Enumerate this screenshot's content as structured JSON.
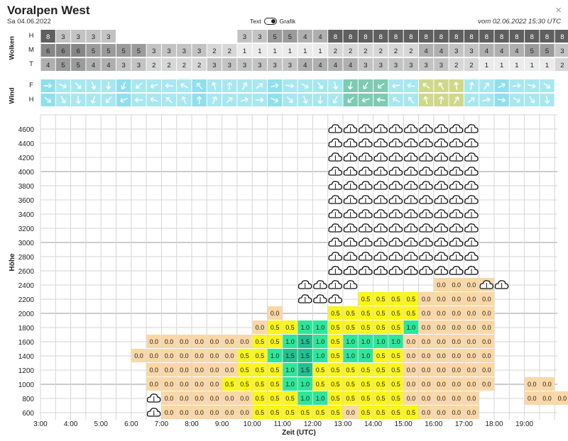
{
  "header": {
    "title": "Voralpen West",
    "date": "Sa 04.06.2022",
    "toggle_left": "Text",
    "toggle_right": "Grafik",
    "issued": "vom 02.06.2022 15:30 UTC",
    "close": "×"
  },
  "clouds_panel": {
    "label": "Wolken",
    "rows": [
      {
        "key": "H",
        "values": [
          8,
          3,
          3,
          3,
          3,
          null,
          null,
          null,
          null,
          null,
          null,
          null,
          null,
          3,
          3,
          5,
          5,
          4,
          4,
          8,
          8,
          8,
          8,
          8,
          8,
          8,
          8,
          8,
          8,
          8,
          8,
          8,
          8,
          8,
          8
        ]
      },
      {
        "key": "M",
        "values": [
          6,
          6,
          6,
          5,
          5,
          5,
          5,
          3,
          3,
          3,
          3,
          2,
          2,
          1,
          1,
          1,
          1,
          1,
          1,
          2,
          2,
          2,
          2,
          2,
          2,
          4,
          4,
          3,
          3,
          4,
          4,
          4,
          5,
          5,
          3
        ]
      },
      {
        "key": "T",
        "values": [
          4,
          5,
          5,
          4,
          4,
          3,
          3,
          2,
          2,
          2,
          2,
          3,
          3,
          3,
          3,
          3,
          3,
          4,
          4,
          4,
          4,
          3,
          3,
          3,
          3,
          3,
          3,
          2,
          2,
          1,
          1,
          1,
          1,
          1,
          2
        ]
      }
    ]
  },
  "wind_panel": {
    "label": "Wind",
    "rows": [
      {
        "key": "F"
      },
      {
        "key": "H"
      }
    ]
  },
  "colors": {
    "c0": "#fbd7a6",
    "c05": "#fbf51a",
    "c10": "#2ee69a",
    "c15": "#22c08e",
    "grid": "#d6d6d6"
  },
  "chart_data": {
    "type": "heatmap",
    "title": "Voralpen West",
    "xlabel": "Zeit (UTC)",
    "ylabel": "Höhe",
    "x_ticks": [
      "3:00",
      "4:00",
      "5:00",
      "6:00",
      "7:00",
      "8:00",
      "9:00",
      "10:00",
      "11:00",
      "12:00",
      "13:00",
      "14:00",
      "15:00",
      "16:00",
      "17:00",
      "18:00",
      "19:00"
    ],
    "y_ticks": [
      600,
      800,
      1000,
      1200,
      1400,
      1600,
      1800,
      2000,
      2200,
      2400,
      2600,
      2800,
      3000,
      3200,
      3400,
      3600,
      3800,
      4000,
      4200,
      4400,
      4600
    ],
    "x_range": [
      "3:00",
      "20:00"
    ],
    "y_range": [
      600,
      4800
    ],
    "time_step_minutes": 30,
    "altitude_step_m": 200,
    "columns": [
      "3:00",
      "3:30",
      "4:00",
      "4:30",
      "5:00",
      "5:30",
      "6:00",
      "6:30",
      "7:00",
      "7:30",
      "8:00",
      "8:30",
      "9:00",
      "9:30",
      "10:00",
      "10:30",
      "11:00",
      "11:30",
      "12:00",
      "12:30",
      "13:00",
      "13:30",
      "14:00",
      "14:30",
      "15:00",
      "15:30",
      "16:00",
      "16:30",
      "17:00",
      "17:30",
      "18:00",
      "18:30",
      "19:00",
      "19:30"
    ],
    "rows": [
      {
        "alt": 2400,
        "cells": [
          [
            7,
            null
          ],
          [
            26,
            "0.0"
          ],
          [
            27,
            "0.0"
          ],
          [
            28,
            "0.0"
          ],
          [
            29,
            "0.0"
          ]
        ]
      },
      {
        "alt": 2200,
        "cells": [
          [
            21,
            "0.5"
          ],
          [
            22,
            "0.5"
          ],
          [
            23,
            "0.5"
          ],
          [
            24,
            "0.5"
          ],
          [
            25,
            "0.0"
          ],
          [
            26,
            "0.0"
          ],
          [
            27,
            "0.0"
          ],
          [
            28,
            "0.0"
          ],
          [
            29,
            "0.0"
          ]
        ]
      },
      {
        "alt": 2000,
        "cells": [
          [
            15,
            "0.0"
          ],
          [
            19,
            "0.5"
          ],
          [
            20,
            "0.5"
          ],
          [
            21,
            "0.5"
          ],
          [
            22,
            "0.5"
          ],
          [
            23,
            "0.5"
          ],
          [
            24,
            "0.5"
          ],
          [
            25,
            "0.0"
          ],
          [
            26,
            "0.0"
          ],
          [
            27,
            "0.0"
          ],
          [
            28,
            "0.0"
          ],
          [
            29,
            "0.0"
          ]
        ]
      },
      {
        "alt": 1800,
        "cells": [
          [
            14,
            "0.0"
          ],
          [
            15,
            "0.5"
          ],
          [
            16,
            "0.5"
          ],
          [
            17,
            "1.0"
          ],
          [
            18,
            "1.0"
          ],
          [
            19,
            "0.5"
          ],
          [
            20,
            "0.5"
          ],
          [
            21,
            "0.5"
          ],
          [
            22,
            "0.5"
          ],
          [
            23,
            "0.5"
          ],
          [
            24,
            "1.0"
          ],
          [
            25,
            "0.0"
          ],
          [
            26,
            "0.0"
          ],
          [
            27,
            "0.0"
          ],
          [
            28,
            "0.0"
          ],
          [
            29,
            "0.0"
          ]
        ]
      },
      {
        "alt": 1600,
        "cells": [
          [
            7,
            "0.0"
          ],
          [
            8,
            "0.0"
          ],
          [
            9,
            "0.0"
          ],
          [
            10,
            "0.0"
          ],
          [
            11,
            "0.0"
          ],
          [
            12,
            "0.0"
          ],
          [
            13,
            "0.0"
          ],
          [
            14,
            "0.5"
          ],
          [
            15,
            "0.5"
          ],
          [
            16,
            "1.0"
          ],
          [
            17,
            "1.5"
          ],
          [
            18,
            "1.0"
          ],
          [
            19,
            "0.5"
          ],
          [
            20,
            "1.0"
          ],
          [
            21,
            "1.0"
          ],
          [
            22,
            "1.0"
          ],
          [
            23,
            "1.0"
          ],
          [
            24,
            "0.0"
          ],
          [
            25,
            "0.0"
          ],
          [
            26,
            "0.0"
          ],
          [
            27,
            "0.0"
          ],
          [
            28,
            "0.0"
          ],
          [
            29,
            "0.0"
          ]
        ]
      },
      {
        "alt": 1400,
        "cells": [
          [
            6,
            "0.0"
          ],
          [
            7,
            "0.0"
          ],
          [
            8,
            "0.0"
          ],
          [
            9,
            "0.0"
          ],
          [
            10,
            "0.0"
          ],
          [
            11,
            "0.0"
          ],
          [
            12,
            "0.0"
          ],
          [
            13,
            "0.5"
          ],
          [
            14,
            "0.5"
          ],
          [
            15,
            "1.0"
          ],
          [
            16,
            "1.5"
          ],
          [
            17,
            "1.5"
          ],
          [
            18,
            "1.0"
          ],
          [
            19,
            "0.5"
          ],
          [
            20,
            "1.0"
          ],
          [
            21,
            "1.0"
          ],
          [
            22,
            "0.5"
          ],
          [
            23,
            "0.5"
          ],
          [
            24,
            "0.0"
          ],
          [
            25,
            "0.0"
          ],
          [
            26,
            "0.0"
          ],
          [
            27,
            "0.0"
          ],
          [
            28,
            "0.0"
          ],
          [
            29,
            "0.0"
          ]
        ]
      },
      {
        "alt": 1200,
        "cells": [
          [
            7,
            "0.0"
          ],
          [
            8,
            "0.0"
          ],
          [
            9,
            "0.0"
          ],
          [
            10,
            "0.0"
          ],
          [
            11,
            "0.0"
          ],
          [
            12,
            "0.0"
          ],
          [
            13,
            "0.5"
          ],
          [
            14,
            "0.5"
          ],
          [
            15,
            "0.5"
          ],
          [
            16,
            "1.0"
          ],
          [
            17,
            "1.5"
          ],
          [
            18,
            "0.5"
          ],
          [
            19,
            "0.5"
          ],
          [
            20,
            "0.5"
          ],
          [
            21,
            "0.5"
          ],
          [
            22,
            "0.5"
          ],
          [
            23,
            "0.5"
          ],
          [
            24,
            "0.0"
          ],
          [
            25,
            "0.0"
          ],
          [
            26,
            "0.0"
          ],
          [
            27,
            "0.0"
          ],
          [
            28,
            "0.0"
          ],
          [
            29,
            "0.0"
          ]
        ]
      },
      {
        "alt": 1000,
        "cells": [
          [
            7,
            "0.0"
          ],
          [
            8,
            "0.0"
          ],
          [
            9,
            "0.0"
          ],
          [
            10,
            "0.0"
          ],
          [
            11,
            "0.0"
          ],
          [
            12,
            "0.5"
          ],
          [
            13,
            "0.5"
          ],
          [
            14,
            "0.5"
          ],
          [
            15,
            "0.5"
          ],
          [
            16,
            "1.0"
          ],
          [
            17,
            "1.0"
          ],
          [
            18,
            "0.5"
          ],
          [
            19,
            "0.5"
          ],
          [
            20,
            "0.5"
          ],
          [
            21,
            "0.5"
          ],
          [
            22,
            "0.5"
          ],
          [
            23,
            "0.5"
          ],
          [
            24,
            "0.0"
          ],
          [
            25,
            "0.0"
          ],
          [
            26,
            "0.0"
          ],
          [
            27,
            "0.0"
          ],
          [
            28,
            "0.0"
          ],
          [
            29,
            "0.0"
          ],
          [
            32,
            "0.0"
          ],
          [
            33,
            "0.0"
          ]
        ]
      },
      {
        "alt": 800,
        "cells": [
          [
            7,
            null
          ],
          [
            8,
            "0.0"
          ],
          [
            9,
            "0.0"
          ],
          [
            10,
            "0.0"
          ],
          [
            11,
            "0.0"
          ],
          [
            12,
            "0.0"
          ],
          [
            13,
            "0.0"
          ],
          [
            14,
            "0.5"
          ],
          [
            15,
            "0.5"
          ],
          [
            16,
            "0.5"
          ],
          [
            17,
            "1.0"
          ],
          [
            18,
            "1.0"
          ],
          [
            19,
            "0.5"
          ],
          [
            20,
            "0.5"
          ],
          [
            21,
            "0.5"
          ],
          [
            22,
            "0.5"
          ],
          [
            23,
            "0.5"
          ],
          [
            24,
            "0.0"
          ],
          [
            25,
            "0.0"
          ],
          [
            26,
            "0.0"
          ],
          [
            27,
            "0.0"
          ],
          [
            28,
            "0.0"
          ],
          [
            32,
            "0.0"
          ],
          [
            33,
            "0.0"
          ],
          [
            34,
            "0.0"
          ]
        ]
      },
      {
        "alt": 600,
        "cells": [
          [
            7,
            null
          ],
          [
            8,
            "0.0"
          ],
          [
            9,
            "0.0"
          ],
          [
            10,
            "0.0"
          ],
          [
            11,
            "0.0"
          ],
          [
            12,
            "0.0"
          ],
          [
            13,
            "0.0"
          ],
          [
            14,
            "0.5"
          ],
          [
            15,
            "0.5"
          ],
          [
            16,
            "0.5"
          ],
          [
            17,
            "0.5"
          ],
          [
            18,
            "0.5"
          ],
          [
            19,
            "0.5"
          ],
          [
            20,
            "0.0"
          ],
          [
            21,
            "0.5"
          ],
          [
            22,
            "0.5"
          ],
          [
            23,
            "0.5"
          ],
          [
            24,
            "0.5"
          ],
          [
            25,
            "0.0"
          ],
          [
            26,
            "0.0"
          ],
          [
            27,
            "0.0"
          ],
          [
            28,
            "0.0"
          ]
        ]
      }
    ],
    "cloud_base": [
      {
        "alt": 2600,
        "from": "12:30",
        "to": "17:00"
      },
      {
        "alt": 2400,
        "from": "11:30",
        "to": "13:00"
      },
      {
        "alt": 2400,
        "from": "17:30",
        "to": "18:00"
      },
      {
        "alt": 2200,
        "from": "11:30",
        "to": "12:30"
      },
      {
        "alt": 800,
        "from": "6:30",
        "to": "6:30"
      },
      {
        "alt": 600,
        "from": "6:30",
        "to": "6:30"
      }
    ],
    "cloud_layer": {
      "from": "12:30",
      "to": "17:00",
      "base_alt": 2600,
      "top_alt": 4800
    }
  }
}
